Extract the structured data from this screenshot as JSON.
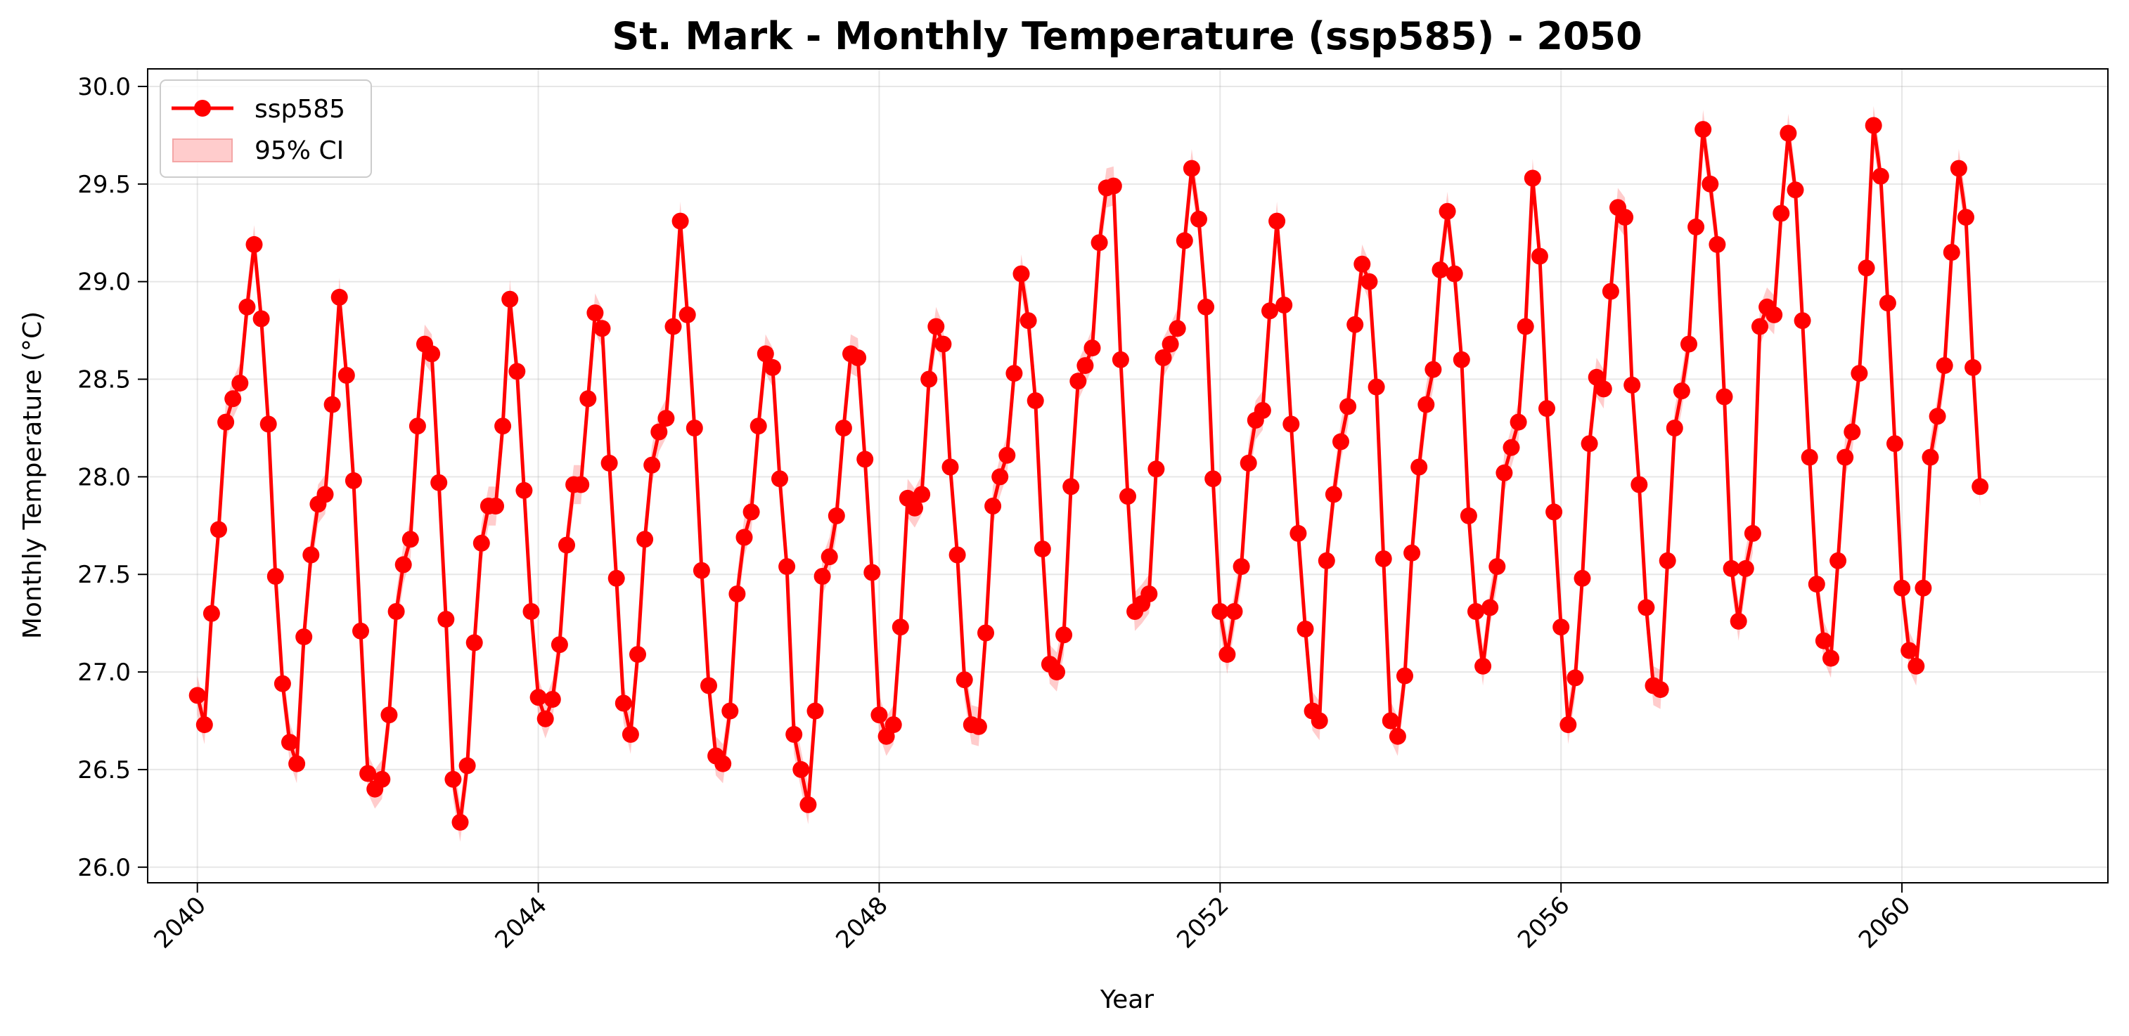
{
  "chart_data": {
    "type": "line",
    "title": "St. Mark - Monthly Temperature (ssp585) - 2050",
    "xlabel": "Year",
    "ylabel": "Monthly Temperature (°C)",
    "xlim": [
      "2039-06-01",
      "2062-06-01"
    ],
    "ylim": [
      25.92,
      30.09
    ],
    "x_ticks": [
      "2040",
      "2044",
      "2048",
      "2052",
      "2056",
      "2060"
    ],
    "y_ticks": [
      "26.0",
      "26.5",
      "27.0",
      "27.5",
      "28.0",
      "28.5",
      "29.0",
      "29.5",
      "30.0"
    ],
    "grid": true,
    "legend_position": "top-left",
    "series": [
      {
        "name": "ssp585",
        "color": "#ff0000",
        "marker": "circle",
        "start": "2040-01",
        "frequency": "monthly",
        "values": [
          26.88,
          26.73,
          27.3,
          27.73,
          28.28,
          28.4,
          28.48,
          28.87,
          29.19,
          28.81,
          28.27,
          27.49,
          26.94,
          26.64,
          26.53,
          27.18,
          27.6,
          27.86,
          27.91,
          28.37,
          28.92,
          28.52,
          27.98,
          27.21,
          26.48,
          26.4,
          26.45,
          26.78,
          27.31,
          27.55,
          27.68,
          28.26,
          28.68,
          28.63,
          27.97,
          27.27,
          26.45,
          26.23,
          26.52,
          27.15,
          27.66,
          27.85,
          27.85,
          28.26,
          28.91,
          28.54,
          27.93,
          27.31,
          26.87,
          26.76,
          26.86,
          27.14,
          27.65,
          27.96,
          27.96,
          28.4,
          28.84,
          28.76,
          28.07,
          27.48,
          26.84,
          26.68,
          27.09,
          27.68,
          28.06,
          28.23,
          28.3,
          28.77,
          29.31,
          28.83,
          28.25,
          27.52,
          26.93,
          26.57,
          26.53,
          26.8,
          27.4,
          27.69,
          27.82,
          28.26,
          28.63,
          28.56,
          27.99,
          27.54,
          26.68,
          26.5,
          26.32,
          26.8,
          27.49,
          27.59,
          27.8,
          28.25,
          28.63,
          28.61,
          28.09,
          27.51,
          26.78,
          26.67,
          26.73,
          27.23,
          27.89,
          27.84,
          27.91,
          28.5,
          28.77,
          28.68,
          28.05,
          27.6,
          26.96,
          26.73,
          26.72,
          27.2,
          27.85,
          28.0,
          28.11,
          28.53,
          29.04,
          28.8,
          28.39,
          27.63,
          27.04,
          27.0,
          27.19,
          27.95,
          28.49,
          28.57,
          28.66,
          29.2,
          29.48,
          29.49,
          28.6,
          27.9,
          27.31,
          27.35,
          27.4,
          28.04,
          28.61,
          28.68,
          28.76,
          29.21,
          29.58,
          29.32,
          28.87,
          27.99,
          27.31,
          27.09,
          27.31,
          27.54,
          28.07,
          28.29,
          28.34,
          28.85,
          29.31,
          28.88,
          28.27,
          27.71,
          27.22,
          26.8,
          26.75,
          27.57,
          27.91,
          28.18,
          28.36,
          28.78,
          29.09,
          29.0,
          28.46,
          27.58,
          26.75,
          26.67,
          26.98,
          27.61,
          28.05,
          28.37,
          28.55,
          29.06,
          29.36,
          29.04,
          28.6,
          27.8,
          27.31,
          27.03,
          27.33,
          27.54,
          28.02,
          28.15,
          28.28,
          28.77,
          29.53,
          29.13,
          28.35,
          27.82,
          27.23,
          26.73,
          26.97,
          27.48,
          28.17,
          28.51,
          28.45,
          28.95,
          29.38,
          29.33,
          28.47,
          27.96,
          27.33,
          26.93,
          26.91,
          27.57,
          28.25,
          28.44,
          28.68,
          29.28,
          29.78,
          29.5,
          29.19,
          28.41,
          27.53,
          27.26,
          27.53,
          27.71,
          28.77,
          28.87,
          28.83,
          29.35,
          29.76,
          29.47,
          28.8,
          28.1,
          27.45,
          27.16,
          27.07,
          27.57,
          28.1,
          28.23,
          28.53,
          29.07,
          29.8,
          29.54,
          28.89,
          28.17,
          27.43,
          27.11,
          27.03,
          27.43,
          28.1,
          28.31,
          28.57,
          29.15,
          29.58,
          29.33,
          28.56,
          27.95
        ]
      },
      {
        "name": "95% CI",
        "color": "#ffcccc",
        "type": "band",
        "half_width": 0.1
      }
    ]
  }
}
